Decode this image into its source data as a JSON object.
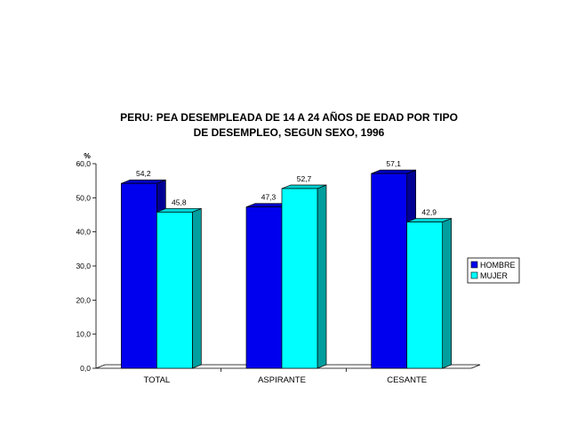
{
  "chart_data": {
    "type": "bar",
    "title_lines": [
      "PERU: PEA DESEMPLEADA DE 14 A 24 AÑOS DE EDAD POR TIPO",
      "DE DESEMPLEO, SEGUN SEXO, 1996"
    ],
    "ylabel": "%",
    "ylim": [
      0,
      60
    ],
    "yticks": [
      "0,0",
      "10,0",
      "20,0",
      "30,0",
      "40,0",
      "50,0",
      "60,0"
    ],
    "categories": [
      "TOTAL",
      "ASPIRANTE",
      "CESANTE"
    ],
    "series": [
      {
        "name": "HOMBRE",
        "values": [
          54.2,
          47.3,
          57.1
        ],
        "labels": [
          "54,2",
          "47,3",
          "57,1"
        ],
        "color": "#0000ee"
      },
      {
        "name": "MUJER",
        "values": [
          45.8,
          52.7,
          42.9
        ],
        "labels": [
          "45,8",
          "52,7",
          "42,9"
        ],
        "color": "#00ffff"
      }
    ],
    "legend": "right",
    "grid": false,
    "style": "3d-bar"
  }
}
